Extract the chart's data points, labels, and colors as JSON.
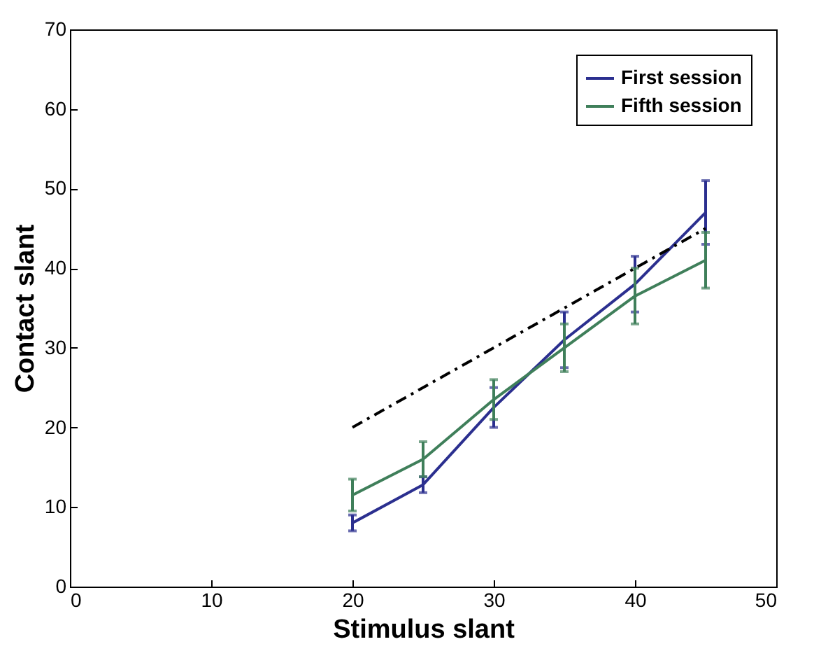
{
  "chart_data": {
    "type": "line",
    "xlabel": "Stimulus slant",
    "ylabel": "Contact slant",
    "x": [
      20,
      25,
      30,
      35,
      40,
      45
    ],
    "series": [
      {
        "name": "First session",
        "color": "#2b2f8f",
        "values": [
          8,
          12.8,
          22.5,
          31,
          38,
          47
        ],
        "errors": [
          1,
          1,
          2.5,
          3.5,
          3.5,
          4
        ]
      },
      {
        "name": "Fifth session",
        "color": "#3f7f5a",
        "values": [
          11.5,
          16,
          23.5,
          30,
          36.5,
          41
        ],
        "errors": [
          2,
          2.2,
          2.5,
          3,
          3.5,
          3.5
        ]
      },
      {
        "color": "#000000",
        "x": [
          20,
          45
        ],
        "values": [
          20,
          45
        ],
        "line_style": "dashed"
      }
    ],
    "xlim": [
      0,
      50
    ],
    "xticks": [
      0,
      10,
      20,
      30,
      40,
      50
    ],
    "ylim": [
      0,
      70
    ],
    "yticks": [
      0,
      10,
      20,
      30,
      40,
      50,
      60,
      70
    ],
    "legend": "top right",
    "marker": "none"
  }
}
